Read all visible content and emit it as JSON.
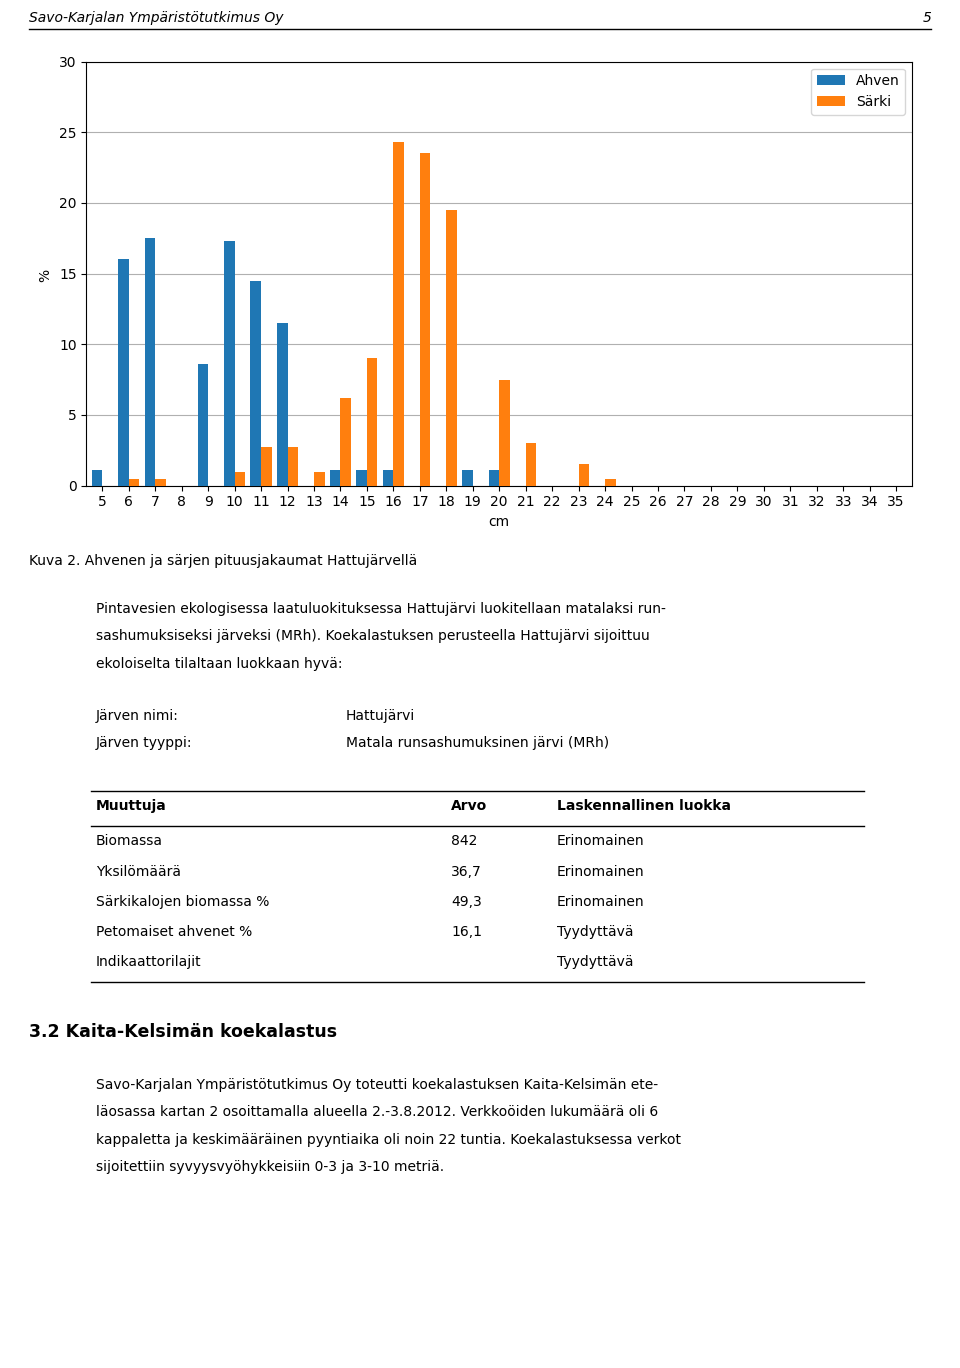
{
  "chart_data": {
    "type": "bar",
    "xlabel": "cm",
    "ylabel": "% ",
    "categories": [
      5,
      6,
      7,
      8,
      9,
      10,
      11,
      12,
      13,
      14,
      15,
      16,
      17,
      18,
      19,
      20,
      21,
      22,
      23,
      24,
      25,
      26,
      27,
      28,
      29,
      30,
      31,
      32,
      33,
      34,
      35
    ],
    "series": [
      {
        "name": "Ahven",
        "values": [
          1.1,
          16.0,
          17.5,
          0.0,
          8.6,
          17.3,
          14.5,
          11.5,
          0.0,
          1.1,
          1.1,
          1.1,
          0.0,
          0.0,
          1.1,
          1.1,
          0.0,
          0.0,
          0.0,
          0.0,
          0.0,
          0.0,
          0.0,
          0.0,
          0.0,
          0.0,
          0.0,
          0.0,
          0.0,
          0.0,
          0.0
        ]
      },
      {
        "name": "Särki",
        "values": [
          0.0,
          0.5,
          0.5,
          0.0,
          0.0,
          1.0,
          2.7,
          2.7,
          1.0,
          6.2,
          9.0,
          24.3,
          23.5,
          19.5,
          0.0,
          7.5,
          3.0,
          0.0,
          1.5,
          0.5,
          0.0,
          0.0,
          0.0,
          0.0,
          0.0,
          0.0,
          0.0,
          0.0,
          0.0,
          0.0,
          0.0
        ]
      }
    ],
    "ylim": [
      0,
      30
    ],
    "yticks": [
      0,
      5,
      10,
      15,
      20,
      25,
      30
    ],
    "grid": true,
    "legend": "upper right"
  },
  "header": "Savo-Karjalan Ympäristötutkimus Oy",
  "page_number": "5",
  "caption": "Kuva 2. Ahvenen ja särjen pituusjakaumat Hattujärvellä",
  "paragraph": [
    "Pintavesien ekologisessa laatuluokituksessa Hattujärvi luokitellaan matalaksi run-",
    "sashumuksiseksi järveksi (MRh). Koekalastuksen perusteella Hattujärvi sijoittuu",
    "ekoloiselta tilaltaan luokkaan hyvä:"
  ],
  "info": [
    [
      "Järven nimi:",
      "Hattujärvi"
    ],
    [
      "Järven tyyppi:",
      "Matala runsashumuksinen järvi (MRh)"
    ]
  ],
  "table": {
    "columns": [
      "Muuttuja",
      "Arvo",
      "Laskennallinen luokka"
    ],
    "rows": [
      [
        "Biomassa",
        "842",
        "Erinomainen"
      ],
      [
        "Yksilömäärä",
        "36,7",
        "Erinomainen"
      ],
      [
        "Särkikalojen biomassa %",
        "49,3",
        "Erinomainen"
      ],
      [
        "Petomaiset ahvenet %",
        "16,1",
        "Tyydyttävä"
      ],
      [
        "Indikaattorilajit",
        null,
        "Tyydyttävä"
      ]
    ]
  },
  "section_title": "3.2 Kaita-Kelsimän koekalastus",
  "section_paragraph": [
    "Savo-Karjalan Ympäristötutkimus Oy toteutti koekalastuksen Kaita-Kelsimän ete-",
    "läosassa kartan 2 osoittamalla alueella 2.-3.8.2012. Verkkoöiden lukumäärä oli 6",
    "kappaletta ja keskimääräinen pyyntiaika oli noin 22 tuntia. Koekalastuksessa verkot",
    "sijoitettiin syvyysvyöhykkeisiin 0-3 ja 3-10 metriä."
  ]
}
